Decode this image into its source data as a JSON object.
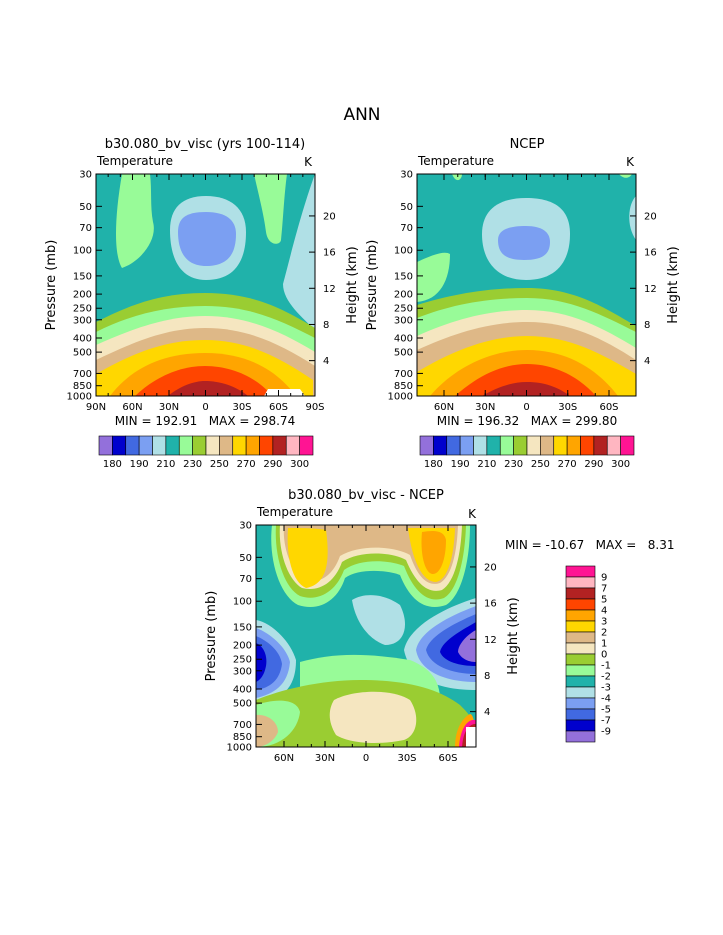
{
  "page_title": "ANN",
  "colors": {
    "temperature_scale": [
      "#9370db",
      "#0000cd",
      "#4169e1",
      "#7b9ff2",
      "#b0e0e6",
      "#20b2aa",
      "#98fb98",
      "#9acd32",
      "#f5e6c0",
      "#deb887",
      "#ffd700",
      "#ffa500",
      "#ff4500",
      "#b22222",
      "#ffb6c1",
      "#ff1493"
    ],
    "difference_scale": [
      "#ff1493",
      "#ffb6c1",
      "#b22222",
      "#ff4500",
      "#ffa500",
      "#ffd700",
      "#deb887",
      "#f5e6c0",
      "#9acd32",
      "#98fb98",
      "#20b2aa",
      "#b0e0e6",
      "#7b9ff2",
      "#4169e1",
      "#0000cd",
      "#9370db"
    ]
  },
  "chart_data": [
    {
      "type": "heatmap",
      "title": "b30.080_bv_visc (yrs 100-114)",
      "subtitle_left": "Temperature",
      "subtitle_right": "K",
      "ylabel": "Pressure (mb)",
      "ylabel_right": "Height (km)",
      "x_ticks": [
        "90N",
        "60N",
        "30N",
        "0",
        "30S",
        "60S",
        "90S"
      ],
      "y_ticks": [
        "30",
        "50",
        "70",
        "100",
        "150",
        "200",
        "250",
        "300",
        "400",
        "500",
        "700",
        "850",
        "1000"
      ],
      "y_right_ticks": [
        "20",
        "16",
        "12",
        "8",
        "4"
      ],
      "stats": "MIN = 192.91   MAX = 298.74",
      "colorbar_labels": [
        "180",
        "190",
        "210",
        "230",
        "250",
        "270",
        "290",
        "300"
      ]
    },
    {
      "type": "heatmap",
      "title": "NCEP",
      "subtitle_left": "Temperature",
      "subtitle_right": "K",
      "ylabel": "Pressure (mb)",
      "ylabel_right": "Height (km)",
      "x_ticks": [
        "60N",
        "30N",
        "0",
        "30S",
        "60S"
      ],
      "y_ticks": [
        "30",
        "50",
        "70",
        "100",
        "150",
        "200",
        "250",
        "300",
        "400",
        "500",
        "700",
        "850",
        "1000"
      ],
      "y_right_ticks": [
        "20",
        "16",
        "12",
        "8",
        "4"
      ],
      "stats": "MIN = 196.32   MAX = 299.80",
      "colorbar_labels": [
        "180",
        "190",
        "210",
        "230",
        "250",
        "270",
        "290",
        "300"
      ]
    },
    {
      "type": "heatmap",
      "title": "b30.080_bv_visc - NCEP",
      "subtitle_left": "Temperature",
      "subtitle_right": "K",
      "ylabel": "Pressure (mb)",
      "ylabel_right": "Height (km)",
      "x_ticks": [
        "60N",
        "30N",
        "0",
        "30S",
        "60S"
      ],
      "y_ticks": [
        "30",
        "50",
        "70",
        "100",
        "150",
        "200",
        "250",
        "300",
        "400",
        "500",
        "700",
        "850",
        "1000"
      ],
      "y_right_ticks": [
        "20",
        "16",
        "12",
        "8",
        "4"
      ],
      "stats": "MIN = -10.67   MAX =   8.31",
      "colorbar_labels": [
        "9",
        "7",
        "5",
        "4",
        "3",
        "2",
        "1",
        "0",
        "-1",
        "-2",
        "-3",
        "-4",
        "-5",
        "-7",
        "-9"
      ]
    }
  ]
}
